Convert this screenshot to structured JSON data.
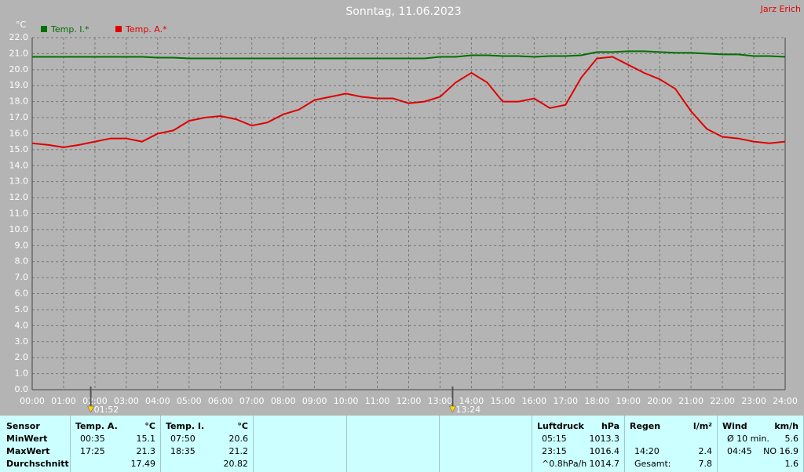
{
  "chart_data": {
    "type": "line",
    "title": "Sonntag, 11.06.2023",
    "author": "Jarz Erich",
    "y_label": "°C",
    "x": [
      0,
      0.5,
      1,
      1.5,
      2,
      2.5,
      3,
      3.5,
      4,
      4.5,
      5,
      5.5,
      6,
      6.5,
      7,
      7.5,
      8,
      8.5,
      9,
      9.5,
      10,
      10.5,
      11,
      11.5,
      12,
      12.5,
      13,
      13.5,
      14,
      14.5,
      15,
      15.5,
      16,
      16.5,
      17,
      17.5,
      18,
      18.5,
      19,
      19.5,
      20,
      20.5,
      21,
      21.5,
      22,
      22.5,
      23,
      23.5,
      24
    ],
    "series": [
      {
        "name": "Temp. I.*",
        "color": "#007000",
        "values": [
          20.8,
          20.8,
          20.8,
          20.8,
          20.8,
          20.8,
          20.8,
          20.8,
          20.75,
          20.75,
          20.7,
          20.7,
          20.7,
          20.7,
          20.7,
          20.7,
          20.7,
          20.7,
          20.7,
          20.7,
          20.7,
          20.7,
          20.7,
          20.7,
          20.7,
          20.7,
          20.8,
          20.8,
          20.9,
          20.9,
          20.85,
          20.85,
          20.8,
          20.85,
          20.85,
          20.9,
          21.1,
          21.1,
          21.15,
          21.15,
          21.1,
          21.05,
          21.05,
          21.0,
          20.95,
          20.95,
          20.85,
          20.85,
          20.8
        ]
      },
      {
        "name": "Temp. A.*",
        "color": "#e00000",
        "values": [
          15.4,
          15.3,
          15.15,
          15.3,
          15.5,
          15.7,
          15.7,
          15.5,
          16.0,
          16.2,
          16.8,
          17.0,
          17.1,
          16.9,
          16.5,
          16.7,
          17.2,
          17.5,
          18.1,
          18.3,
          18.5,
          18.3,
          18.2,
          18.2,
          17.9,
          18.0,
          18.3,
          19.2,
          19.8,
          19.2,
          18.0,
          18.0,
          18.2,
          17.6,
          17.8,
          19.5,
          20.7,
          20.8,
          20.3,
          19.8,
          19.4,
          18.8,
          17.4,
          16.3,
          15.8,
          15.7,
          15.5,
          15.4,
          15.5
        ]
      }
    ],
    "xlim": [
      0,
      24
    ],
    "xticks": [
      {
        "value": 0,
        "label": "00:00"
      },
      {
        "value": 1,
        "label": "01:00"
      },
      {
        "value": 2,
        "label": "02:00"
      },
      {
        "value": 3,
        "label": "03:00"
      },
      {
        "value": 4,
        "label": "04:00"
      },
      {
        "value": 5,
        "label": "05:00"
      },
      {
        "value": 6,
        "label": "06:00"
      },
      {
        "value": 7,
        "label": "07:00"
      },
      {
        "value": 8,
        "label": "08:00"
      },
      {
        "value": 9,
        "label": "09:00"
      },
      {
        "value": 10,
        "label": "10:00"
      },
      {
        "value": 11,
        "label": "11:00"
      },
      {
        "value": 12,
        "label": "12:00"
      },
      {
        "value": 13,
        "label": "13:00"
      },
      {
        "value": 14,
        "label": "14:00"
      },
      {
        "value": 15,
        "label": "15:00"
      },
      {
        "value": 16,
        "label": "16:00"
      },
      {
        "value": 17,
        "label": "17:00"
      },
      {
        "value": 18,
        "label": "18:00"
      },
      {
        "value": 19,
        "label": "19:00"
      },
      {
        "value": 20,
        "label": "20:00"
      },
      {
        "value": 21,
        "label": "21:00"
      },
      {
        "value": 22,
        "label": "22:00"
      },
      {
        "value": 23,
        "label": "23:00"
      },
      {
        "value": 24,
        "label": "24:00"
      }
    ],
    "ylim": [
      0,
      22
    ],
    "yticks": [
      {
        "value": 0,
        "label": "0.0"
      },
      {
        "value": 1,
        "label": "1.0"
      },
      {
        "value": 2,
        "label": "2.0"
      },
      {
        "value": 3,
        "label": "3.0"
      },
      {
        "value": 4,
        "label": "4.0"
      },
      {
        "value": 5,
        "label": "5.0"
      },
      {
        "value": 6,
        "label": "6.0"
      },
      {
        "value": 7,
        "label": "7.0"
      },
      {
        "value": 8,
        "label": "8.0"
      },
      {
        "value": 9,
        "label": "9.0"
      },
      {
        "value": 10,
        "label": "10.0"
      },
      {
        "value": 11,
        "label": "11.0"
      },
      {
        "value": 12,
        "label": "12.0"
      },
      {
        "value": 13,
        "label": "13.0"
      },
      {
        "value": 14,
        "label": "14.0"
      },
      {
        "value": 15,
        "label": "15.0"
      },
      {
        "value": 16,
        "label": "16.0"
      },
      {
        "value": 17,
        "label": "17.0"
      },
      {
        "value": 18,
        "label": "18.0"
      },
      {
        "value": 19,
        "label": "19.0"
      },
      {
        "value": 20,
        "label": "20.0"
      },
      {
        "value": 21,
        "label": "21.0"
      },
      {
        "value": 22,
        "label": "22.0"
      }
    ],
    "grid": true,
    "annotations": [
      {
        "x": 1.8667,
        "label": "01:52"
      },
      {
        "x": 13.4,
        "label": "13:24"
      }
    ]
  },
  "table": {
    "blocks": [
      {
        "header": {
          "left": "Sensor"
        },
        "rows": [
          {
            "left": "MinWert"
          },
          {
            "left": "MaxWert"
          },
          {
            "left": "Durchschnitt"
          }
        ]
      },
      {
        "header": {
          "left": "Temp. A.",
          "right": "°C"
        },
        "rows": [
          {
            "left": "00:35",
            "right": "15.1"
          },
          {
            "left": "17:25",
            "right": "21.3"
          },
          {
            "right": "17.49"
          }
        ]
      },
      {
        "header": {
          "left": "Temp. I.",
          "right": "°C"
        },
        "rows": [
          {
            "left": "07:50",
            "right": "20.6"
          },
          {
            "left": "18:35",
            "right": "21.2"
          },
          {
            "right": "20.82"
          }
        ]
      },
      {
        "header": {
          "left": "Luftdruck",
          "right": "hPa"
        },
        "rows": [
          {
            "left": "05:15",
            "right": "1013.3"
          },
          {
            "left": "23:15",
            "right": "1016.4"
          },
          {
            "left": "^0.8hPa/h",
            "right": "1014.7"
          }
        ]
      },
      {
        "header": {
          "left": "Regen",
          "right": "l/m²"
        },
        "rows": [
          null,
          {
            "left": "14:20",
            "right": "2.4"
          },
          {
            "left": "Gesamt:",
            "right": "7.8"
          }
        ]
      },
      {
        "header": {
          "left": "Wind",
          "right": "km/h"
        },
        "rows": [
          {
            "left": "Ø 10 min.",
            "right": "5.6"
          },
          {
            "left": "04:45",
            "right": "NO 16.9"
          },
          {
            "right": "1.6"
          }
        ]
      }
    ]
  }
}
